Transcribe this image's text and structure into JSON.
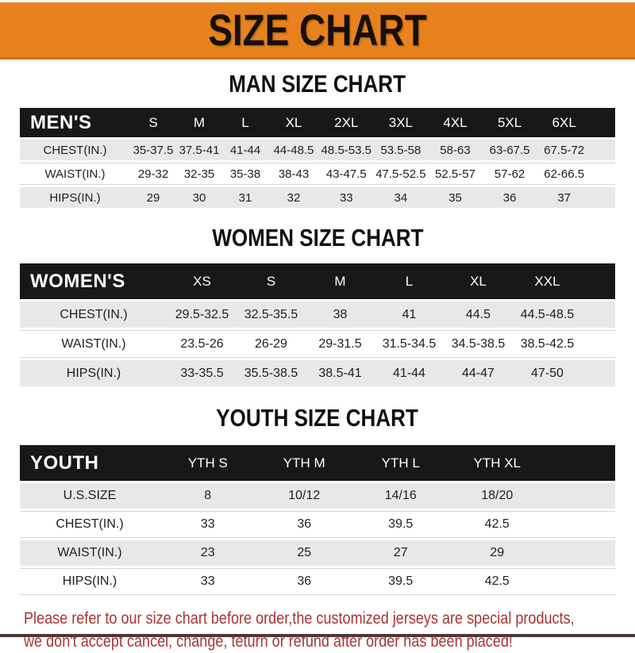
{
  "banner": {
    "title": "SIZE CHART"
  },
  "chart_data": [
    {
      "type": "table",
      "title": "MAN SIZE CHART",
      "corner_label": "MEN'S",
      "columns": [
        "S",
        "M",
        "L",
        "XL",
        "2XL",
        "3XL",
        "4XL",
        "5XL",
        "6XL"
      ],
      "rows": [
        {
          "label": "CHEST(IN.)",
          "values": [
            "35-37.5",
            "37.5-41",
            "41-44",
            "44-48.5",
            "48.5-53.5",
            "53.5-58",
            "58-63",
            "63-67.5",
            "67.5-72"
          ]
        },
        {
          "label": "WAIST(IN.)",
          "values": [
            "29-32",
            "32-35",
            "35-38",
            "38-43",
            "43-47.5",
            "47.5-52.5",
            "52.5-57",
            "57-62",
            "62-66.5"
          ]
        },
        {
          "label": "HIPS(IN.)",
          "values": [
            "29",
            "30",
            "31",
            "32",
            "33",
            "34",
            "35",
            "36",
            "37"
          ]
        }
      ]
    },
    {
      "type": "table",
      "title": "WOMEN SIZE CHART",
      "corner_label": "WOMEN'S",
      "columns": [
        "XS",
        "S",
        "M",
        "L",
        "XL",
        "XXL"
      ],
      "rows": [
        {
          "label": "CHEST(IN.)",
          "values": [
            "29.5-32.5",
            "32.5-35.5",
            "38",
            "41",
            "44.5",
            "44.5-48.5"
          ]
        },
        {
          "label": "WAIST(IN.)",
          "values": [
            "23.5-26",
            "26-29",
            "29-31.5",
            "31.5-34.5",
            "34.5-38.5",
            "38.5-42.5"
          ]
        },
        {
          "label": "HIPS(IN.)",
          "values": [
            "33-35.5",
            "35.5-38.5",
            "38.5-41",
            "41-44",
            "44-47",
            "47-50"
          ]
        }
      ]
    },
    {
      "type": "table",
      "title": "YOUTH SIZE CHART",
      "corner_label": "YOUTH",
      "columns": [
        "YTH S",
        "YTH M",
        "YTH L",
        "YTH XL"
      ],
      "rows": [
        {
          "label": "U.S.SIZE",
          "values": [
            "8",
            "10/12",
            "14/16",
            "18/20"
          ]
        },
        {
          "label": "CHEST(IN.)",
          "values": [
            "33",
            "36",
            "39.5",
            "42.5"
          ]
        },
        {
          "label": "WAIST(IN.)",
          "values": [
            "23",
            "25",
            "27",
            "29"
          ]
        },
        {
          "label": "HIPS(IN.)",
          "values": [
            "33",
            "36",
            "39.5",
            "42.5"
          ]
        }
      ]
    }
  ],
  "disclaimer": {
    "line1": "Please refer to our size chart before order,the customized jerseys are special products,",
    "line2": "we don't accept cancel, change, teturn or refund after order has been placed!"
  },
  "colors": {
    "banner_bg": "#E8821E",
    "header_band_bg": "#181818",
    "alt_row_bg": "#E8E8E8",
    "disclaimer_red": "#A93430",
    "bottom_strip": "#4A3838"
  }
}
